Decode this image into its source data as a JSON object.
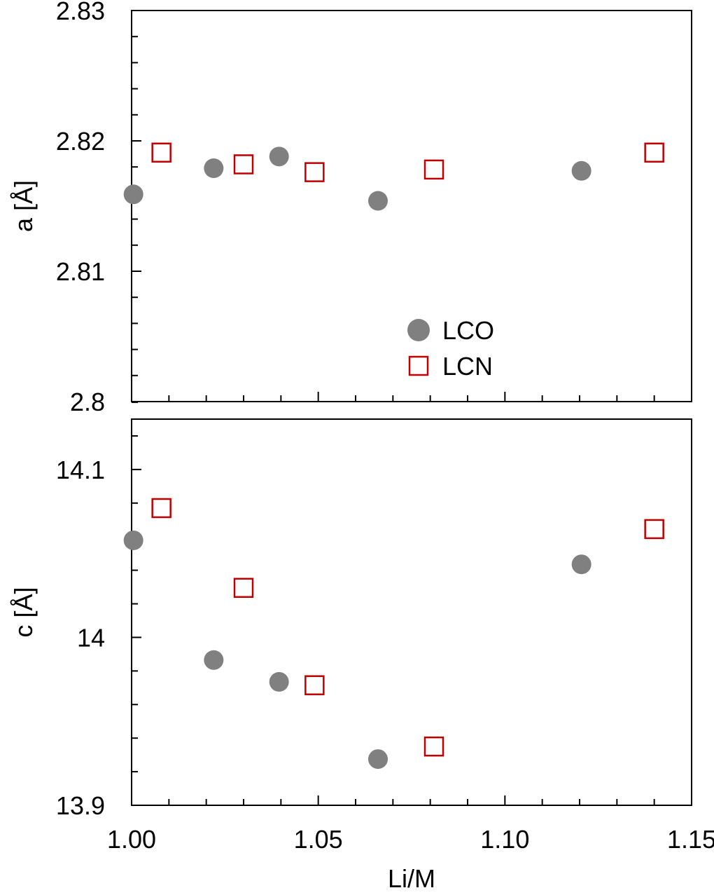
{
  "chart_data": [
    {
      "type": "scatter",
      "ylabel": "a [Å]",
      "ylim": [
        2.8,
        2.83
      ],
      "yticks": [
        "2.8",
        "2.81",
        "2.82",
        "2.83"
      ],
      "xlim": [
        1.0,
        1.15
      ],
      "legend_position": "bottom-center",
      "series": [
        {
          "name": "LCO",
          "marker": "filled-circle",
          "color": "#808080",
          "points": [
            {
              "x": 1.0005,
              "y": 2.8159
            },
            {
              "x": 1.022,
              "y": 2.8179
            },
            {
              "x": 1.0395,
              "y": 2.8188
            },
            {
              "x": 1.066,
              "y": 2.8154
            },
            {
              "x": 1.1205,
              "y": 2.8177
            }
          ]
        },
        {
          "name": "LCN",
          "marker": "open-square",
          "color": "#c00000",
          "points": [
            {
              "x": 1.008,
              "y": 2.8191
            },
            {
              "x": 1.03,
              "y": 2.8182
            },
            {
              "x": 1.049,
              "y": 2.8176
            },
            {
              "x": 1.081,
              "y": 2.8178
            },
            {
              "x": 1.14,
              "y": 2.8191
            }
          ]
        }
      ]
    },
    {
      "type": "scatter",
      "xlabel": "Li/M",
      "ylabel": "c [Å]",
      "ylim": [
        13.9,
        14.13
      ],
      "yticks": [
        "13.9",
        "14",
        "14.1"
      ],
      "xlim": [
        1.0,
        1.15
      ],
      "xticks": [
        "1.00",
        "1.05",
        "1.10",
        "1.15"
      ],
      "series": [
        {
          "name": "LCO",
          "marker": "filled-circle",
          "color": "#808080",
          "points": [
            {
              "x": 1.0005,
              "y": 14.0578
            },
            {
              "x": 1.022,
              "y": 13.9865
            },
            {
              "x": 1.0395,
              "y": 13.9735
            },
            {
              "x": 1.066,
              "y": 13.9275
            },
            {
              "x": 1.1205,
              "y": 14.0435
            }
          ]
        },
        {
          "name": "LCN",
          "marker": "open-square",
          "color": "#c00000",
          "points": [
            {
              "x": 1.008,
              "y": 14.077
            },
            {
              "x": 1.03,
              "y": 14.0295
            },
            {
              "x": 1.049,
              "y": 13.9715
            },
            {
              "x": 1.081,
              "y": 13.935
            },
            {
              "x": 1.14,
              "y": 14.0645
            }
          ]
        }
      ]
    }
  ]
}
